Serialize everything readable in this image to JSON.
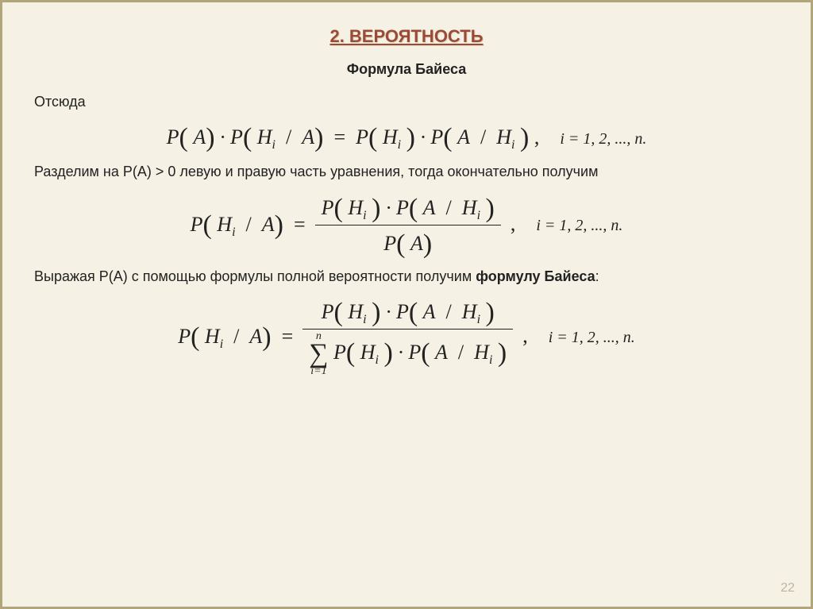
{
  "title": "2. ВЕРОЯТНОСТЬ",
  "subtitle": "Формула Байеса",
  "text": {
    "p1": "Отсюда",
    "p2": "Разделим на Р(А) > 0 левую и правую часть уравнения, тогда окончательно получим",
    "p3a": "Выражая Р(А) с помощью формулы полной вероятности получим ",
    "p3b": "формулу Байеса",
    "p3c": ":"
  },
  "math": {
    "P": "P",
    "A": "A",
    "H": "H",
    "sub_i": "i",
    "slash": " / ",
    "dot": "·",
    "eq": "=",
    "comma": ",",
    "idx_range": "i = 1, 2, ..., n.",
    "sum_upper": "n",
    "sum_lower": "i=1",
    "sigma": "∑"
  },
  "page_number": "22",
  "style": {
    "background": "#f5f1e4",
    "border": "#b0a67a",
    "title_color": "#9a4a36",
    "body_font_size": 18,
    "formula_font_size": 26,
    "title_font_size": 22,
    "subtitle_font_size": 18
  }
}
